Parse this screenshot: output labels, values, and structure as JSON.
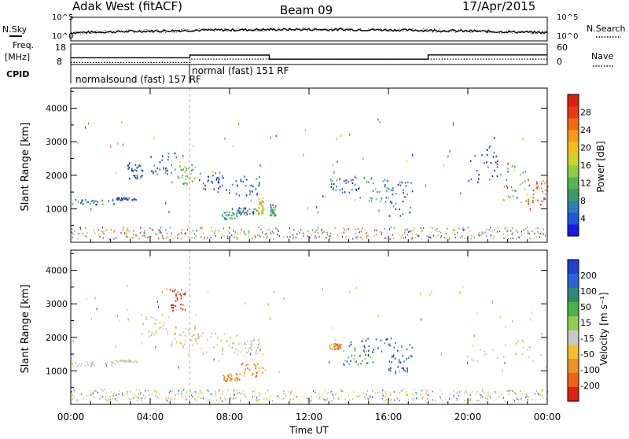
{
  "header": {
    "station": "Adak West (fitACF)",
    "beam": "Beam 09",
    "date": "17/Apr/2015"
  },
  "side_labels": {
    "nsky": "N.Sky",
    "nsearch": "N.Search",
    "freq": "Freq.",
    "freq_unit": "[MHz]",
    "nave": "Nave",
    "cpid": "CPID",
    "sky_ticks": [
      "10^5",
      "10^0"
    ],
    "search_ticks": [
      "10^5",
      "10^0"
    ],
    "freq_ticks": [
      "18",
      "8"
    ],
    "nave_ticks": [
      "60",
      "0"
    ]
  },
  "cpid_labels": [
    {
      "text": "normalsound (fast) 157 RF",
      "start_hour": 0
    },
    {
      "text": "normal (fast) 151 RF",
      "start_hour": 6
    }
  ],
  "chart_data": [
    {
      "type": "line",
      "panel": "noise",
      "series": [
        {
          "name": "N.Sky",
          "style": "solid"
        },
        {
          "name": "N.Search",
          "style": "dotted"
        }
      ]
    },
    {
      "type": "line",
      "panel": "frequency-nave",
      "freq_mhz": {
        "x": [
          0,
          6,
          6,
          10,
          10,
          18,
          18,
          24
        ],
        "y": [
          11.3,
          11.3,
          12.6,
          12.6,
          10.6,
          10.6,
          12.7,
          12.7
        ]
      },
      "nave": {
        "x": [
          0,
          6,
          6,
          24
        ],
        "y": [
          6,
          6,
          16,
          16
        ]
      },
      "freq_range": [
        8,
        18
      ],
      "nave_range": [
        0,
        60
      ]
    },
    {
      "type": "heatmap",
      "panel": "power",
      "ylabel": "Slant Range [km]",
      "yticks": [
        "1000",
        "2000",
        "3000",
        "4000"
      ],
      "ylim": [
        0,
        4600
      ],
      "xlim": [
        0,
        24
      ],
      "colorbar": {
        "label": "Power [dB]",
        "ticks": [
          "4",
          "8",
          "12",
          "16",
          "20",
          "24",
          "28"
        ],
        "colors": [
          "#1a1ae6",
          "#2255d8",
          "#2a7fc0",
          "#3c9a66",
          "#55b45a",
          "#92cc40",
          "#cbd230",
          "#f0c020",
          "#f79a18",
          "#f06a14",
          "#e83a10",
          "#e01e0e"
        ]
      },
      "regions": [
        {
          "x0": 0.0,
          "x1": 2.2,
          "r0": 1150,
          "r1": 1300,
          "level": 0.22
        },
        {
          "x0": 2.2,
          "x1": 3.3,
          "r0": 1280,
          "r1": 1350,
          "level": 0.1
        },
        {
          "x0": 2.8,
          "x1": 3.6,
          "r0": 1900,
          "r1": 2400,
          "level": 0.05
        },
        {
          "x0": 4.0,
          "x1": 5.3,
          "r0": 2050,
          "r1": 2700,
          "level": 0.18
        },
        {
          "x0": 5.3,
          "x1": 6.4,
          "r0": 1750,
          "r1": 2350,
          "level": 0.38
        },
        {
          "x0": 6.4,
          "x1": 7.8,
          "r0": 1500,
          "r1": 2200,
          "level": 0.12
        },
        {
          "x0": 7.8,
          "x1": 9.5,
          "r0": 1400,
          "r1": 2000,
          "level": 0.08
        },
        {
          "x0": 7.6,
          "x1": 8.4,
          "r0": 700,
          "r1": 950,
          "level": 0.35
        },
        {
          "x0": 8.4,
          "x1": 9.4,
          "r0": 850,
          "r1": 1050,
          "level": 0.2
        },
        {
          "x0": 9.4,
          "x1": 9.7,
          "r0": 850,
          "r1": 1350,
          "level": 0.55
        },
        {
          "x0": 10.0,
          "x1": 10.3,
          "r0": 800,
          "r1": 1150,
          "level": 0.3
        },
        {
          "x0": 13.0,
          "x1": 14.5,
          "r0": 1500,
          "r1": 1950,
          "level": 0.12
        },
        {
          "x0": 14.5,
          "x1": 16.0,
          "r0": 1200,
          "r1": 1950,
          "level": 0.3
        },
        {
          "x0": 16.0,
          "x1": 17.2,
          "r0": 800,
          "r1": 2000,
          "level": 0.15
        },
        {
          "x0": 20.0,
          "x1": 21.5,
          "r0": 1800,
          "r1": 2900,
          "level": 0.1
        },
        {
          "x0": 21.5,
          "x1": 23.0,
          "r0": 1200,
          "r1": 2300,
          "level": 0.4
        },
        {
          "x0": 23.0,
          "x1": 24.0,
          "r0": 1100,
          "r1": 1900,
          "level": 0.85
        }
      ]
    },
    {
      "type": "heatmap",
      "panel": "velocity",
      "ylabel": "Slant Range [km]",
      "yticks": [
        "1000",
        "2000",
        "3000",
        "4000"
      ],
      "ylim": [
        0,
        4600
      ],
      "xlim": [
        0,
        24
      ],
      "xlabel": "Time UT",
      "xticks": [
        "00:00",
        "04:00",
        "08:00",
        "12:00",
        "16:00",
        "20:00",
        "00:00"
      ],
      "colorbar": {
        "label": "Velocity [m s⁻¹]",
        "ticks": [
          "200",
          "100",
          "50",
          "15",
          "-15",
          "-50",
          "-100",
          "-200"
        ],
        "colors": [
          "#2040d0",
          "#2a64d8",
          "#2f8a70",
          "#48b448",
          "#90cc50",
          "#c8c8c8",
          "#f0c030",
          "#f09020",
          "#f06018",
          "#e02010"
        ]
      },
      "regions": [
        {
          "x0": 0.0,
          "x1": 2.2,
          "r0": 1150,
          "r1": 1300,
          "vel": "gs"
        },
        {
          "x0": 2.2,
          "x1": 3.3,
          "r0": 1280,
          "r1": 1350,
          "vel": "gs"
        },
        {
          "x0": 3.5,
          "x1": 5.0,
          "r0": 2000,
          "r1": 2700,
          "vel": "gs"
        },
        {
          "x0": 5.0,
          "x1": 6.4,
          "r0": 1750,
          "r1": 2350,
          "vel": "slow-neg"
        },
        {
          "x0": 6.4,
          "x1": 8.5,
          "r0": 1500,
          "r1": 2200,
          "vel": "gs"
        },
        {
          "x0": 8.5,
          "x1": 9.5,
          "r0": 1500,
          "r1": 2000,
          "vel": "gs"
        },
        {
          "x0": 7.6,
          "x1": 8.5,
          "r0": 700,
          "r1": 950,
          "vel": "neg"
        },
        {
          "x0": 8.5,
          "x1": 9.8,
          "r0": 850,
          "r1": 1250,
          "vel": "neg"
        },
        {
          "x0": 5.0,
          "x1": 5.8,
          "r0": 2800,
          "r1": 3500,
          "vel": "strong-neg"
        },
        {
          "x0": 13.0,
          "x1": 13.6,
          "r0": 1650,
          "r1": 1850,
          "vel": "neg"
        },
        {
          "x0": 13.6,
          "x1": 15.5,
          "r0": 1200,
          "r1": 1650,
          "vel": "slow-pos"
        },
        {
          "x0": 14.0,
          "x1": 17.2,
          "r0": 1600,
          "r1": 2000,
          "vel": "pos"
        },
        {
          "x0": 16.0,
          "x1": 17.2,
          "r0": 900,
          "r1": 1500,
          "vel": "pos"
        },
        {
          "x0": 20.0,
          "x1": 24.0,
          "r0": 1200,
          "r1": 2900,
          "vel": "gs"
        }
      ]
    }
  ]
}
